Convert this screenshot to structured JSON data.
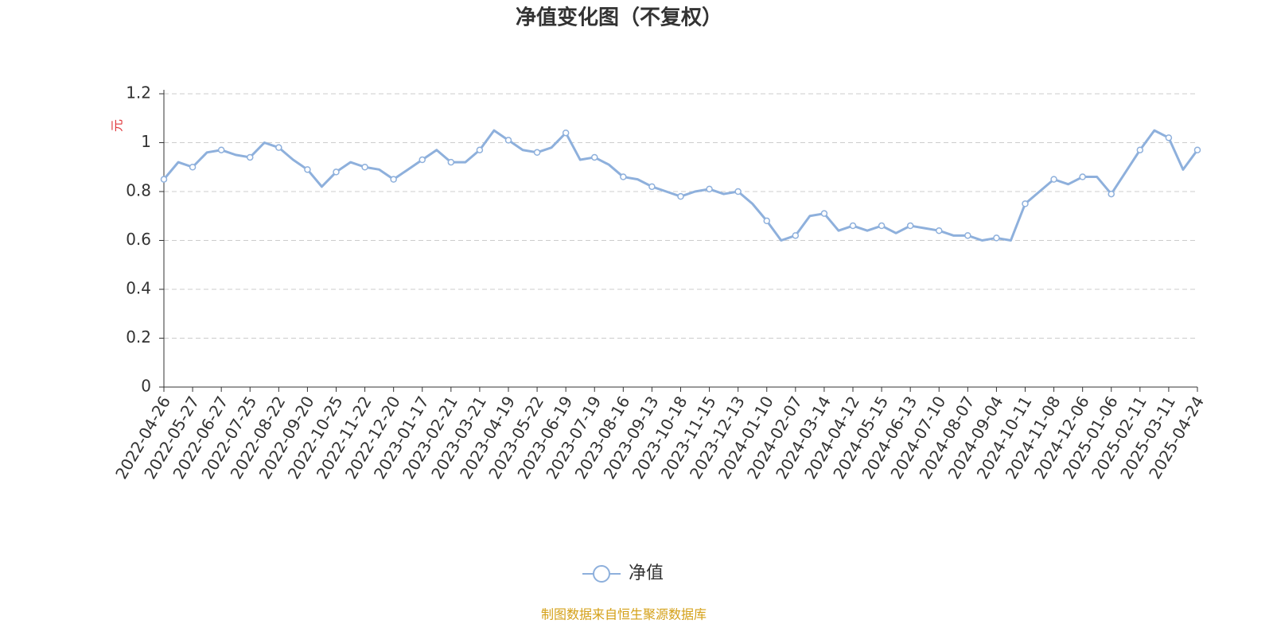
{
  "chart_data": {
    "type": "line",
    "title": "净值变化图（不复权）",
    "y_label": "元",
    "categories": [
      "2022-04-26",
      null,
      "2022-05-27",
      null,
      "2022-06-27",
      null,
      "2022-07-25",
      null,
      "2022-08-22",
      null,
      "2022-09-20",
      null,
      "2022-10-25",
      null,
      "2022-11-22",
      null,
      "2022-12-20",
      null,
      "2023-01-17",
      null,
      "2023-02-21",
      null,
      "2023-03-21",
      null,
      "2023-04-19",
      null,
      "2023-05-22",
      null,
      "2023-06-19",
      null,
      "2023-07-19",
      null,
      "2023-08-16",
      null,
      "2023-09-13",
      null,
      "2023-10-18",
      null,
      "2023-11-15",
      null,
      "2023-12-13",
      null,
      "2024-01-10",
      null,
      "2024-02-07",
      null,
      "2024-03-14",
      null,
      "2024-04-12",
      null,
      "2024-05-15",
      null,
      "2024-06-13",
      null,
      "2024-07-10",
      null,
      "2024-08-07",
      null,
      "2024-09-04",
      null,
      "2024-10-11",
      null,
      "2024-11-08",
      null,
      "2024-12-06",
      null,
      "2025-01-06",
      null,
      "2025-02-11",
      null,
      "2025-03-11",
      null,
      "2025-04-24"
    ],
    "series": [
      {
        "name": "净值",
        "color": "#8eb0dc",
        "values": [
          0.85,
          0.92,
          0.9,
          0.96,
          0.97,
          0.95,
          0.94,
          1.0,
          0.98,
          0.93,
          0.89,
          0.82,
          0.88,
          0.92,
          0.9,
          0.89,
          0.85,
          0.89,
          0.93,
          0.97,
          0.92,
          0.92,
          0.97,
          1.05,
          1.01,
          0.97,
          0.96,
          0.98,
          1.04,
          0.93,
          0.94,
          0.91,
          0.86,
          0.85,
          0.82,
          0.8,
          0.78,
          0.8,
          0.81,
          0.79,
          0.8,
          0.75,
          0.68,
          0.6,
          0.62,
          0.7,
          0.71,
          0.64,
          0.66,
          0.64,
          0.66,
          0.63,
          0.66,
          0.65,
          0.64,
          0.62,
          0.62,
          0.6,
          0.61,
          0.6,
          0.75,
          0.8,
          0.85,
          0.83,
          0.86,
          0.86,
          0.79,
          0.88,
          0.97,
          1.05,
          1.02,
          0.89,
          0.97
        ]
      }
    ],
    "ylim": [
      0,
      1.2
    ],
    "yticks": [
      0,
      0.2,
      0.4,
      0.6,
      0.8,
      1,
      1.2
    ],
    "grid": true,
    "footnote": "制图数据来自恒生聚源数据库"
  }
}
